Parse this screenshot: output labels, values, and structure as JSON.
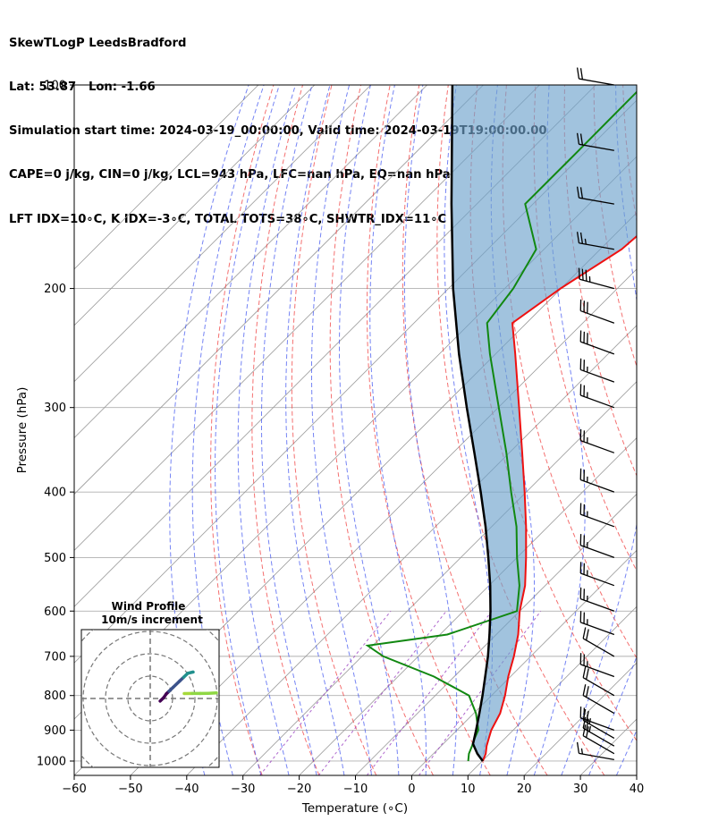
{
  "header": {
    "line1": "SkewTLogP LeedsBradford",
    "line2": "Lat: 53.87   Lon: -1.66",
    "line3": "Simulation start time: 2024-03-19_00:00:00, Valid time: 2024-03-19T19:00:00.00",
    "line4": "CAPE=0 j/kg, CIN=0 j/kg, LCL=943 hPa, LFC=nan hPa, EQ=nan hPa",
    "line5": "LFT IDX=10∘C, K IDX=-3∘C, TOTAL TOTS=38∘C, SHWTR_IDX=11∘C"
  },
  "chart_data": {
    "type": "skewt",
    "xlabel": "Temperature (∘C)",
    "ylabel": "Pressure (hPa)",
    "xlim": [
      -60,
      40
    ],
    "ylim": [
      1050,
      100
    ],
    "yscale": "log",
    "x_ticks": [
      -60,
      -50,
      -40,
      -30,
      -20,
      -10,
      0,
      10,
      20,
      30,
      40
    ],
    "x_tick_labels": [
      "−60",
      "−50",
      "−40",
      "−30",
      "−20",
      "−10",
      "0",
      "10",
      "20",
      "30",
      "40"
    ],
    "y_ticks": [
      1000,
      900,
      800,
      700,
      600,
      500,
      400,
      300,
      200,
      100
    ],
    "y_tick_labels": [
      "1000",
      "900",
      "800",
      "700",
      "600",
      "500",
      "400",
      "300",
      "200",
      "100"
    ],
    "grid": true,
    "colors": {
      "temperature": "#ee1111",
      "dewpoint": "#118811",
      "parcel": "#000000",
      "shade": "#6fa3cc",
      "dry_adiabat": "#f04040",
      "moist_adiabat": "#3a50f0",
      "mixing_ratio": "#9a40c0",
      "isotherm": "#999999"
    },
    "series": [
      {
        "name": "",
        "role": "temperature",
        "pressure": [
          1000,
          975,
          950,
          925,
          900,
          850,
          800,
          750,
          700,
          650,
          600,
          550,
          500,
          450,
          400,
          350,
          300,
          250,
          225,
          200,
          175,
          150,
          125,
          100
        ],
        "temp": [
          10.1,
          9.3,
          8.1,
          7.1,
          6.1,
          4.7,
          2.4,
          -0.4,
          -3.0,
          -6.1,
          -10.0,
          -13.6,
          -18.4,
          -23.9,
          -30.3,
          -37.7,
          -46.3,
          -56.5,
          -62.5,
          -60.1,
          -56.2,
          -54.9,
          -55.8,
          -56.6
        ]
      },
      {
        "name": "",
        "role": "dewpoint",
        "pressure": [
          1000,
          975,
          950,
          925,
          900,
          850,
          800,
          750,
          700,
          675,
          650,
          600,
          550,
          500,
          450,
          400,
          350,
          300,
          250,
          225,
          200,
          175,
          150,
          125,
          100
        ],
        "temp": [
          7.5,
          6.3,
          5.5,
          4.6,
          3.8,
          0.4,
          -4.0,
          -13.6,
          -26.2,
          -30.9,
          -18.7,
          -10.5,
          -14.6,
          -20.0,
          -25.6,
          -32.7,
          -40.5,
          -49.9,
          -61.0,
          -67.0,
          -68.5,
          -71.4,
          -81.4,
          -81.4,
          -81.5
        ]
      },
      {
        "name": "",
        "role": "parcel",
        "pressure": [
          1000,
          975,
          943,
          900,
          850,
          800,
          750,
          700,
          650,
          600,
          550,
          500,
          450,
          400,
          350,
          300,
          250,
          200,
          150,
          100
        ],
        "temp": [
          10.1,
          7.8,
          5.3,
          3.4,
          1.0,
          -1.6,
          -4.5,
          -7.6,
          -11.2,
          -15.2,
          -19.8,
          -25.1,
          -31.1,
          -38.1,
          -46.2,
          -55.6,
          -66.5,
          -79.2,
          -94.5,
          -115.5
        ]
      }
    ],
    "wind_barbs": {
      "x_position_temp": 36,
      "pressure": [
        995,
        975,
        950,
        925,
        900,
        850,
        800,
        750,
        700,
        650,
        600,
        550,
        500,
        450,
        400,
        350,
        300,
        275,
        250,
        225,
        200,
        175,
        150,
        125,
        100
      ],
      "speed_kt": [
        18,
        22,
        25,
        25,
        25,
        20,
        20,
        25,
        20,
        25,
        25,
        25,
        25,
        25,
        25,
        25,
        25,
        25,
        30,
        30,
        35,
        25,
        20,
        20,
        20
      ],
      "direction_deg": [
        280,
        300,
        300,
        300,
        290,
        300,
        300,
        290,
        300,
        290,
        290,
        290,
        290,
        290,
        290,
        290,
        290,
        290,
        290,
        290,
        285,
        280,
        280,
        280,
        280
      ]
    },
    "inset": {
      "title_line1": "Wind Profile",
      "title_line2": "10m/s increment",
      "rings": 4,
      "hodograph_u": [
        -0.3,
        1.0,
        2.0,
        3.0,
        4.5,
        7.0,
        8.5,
        10.0,
        12.0
      ],
      "hodograph_v": [
        -0.3,
        1.0,
        2.5,
        3.5,
        5.0,
        7.5,
        9.0,
        10.5,
        11.0
      ],
      "hodograph_u2": [
        6.0,
        9.0,
        12.0,
        15.0,
        18.0
      ],
      "hodograph_v2": [
        3.5,
        3.6,
        3.6,
        3.8,
        4.3
      ]
    }
  }
}
